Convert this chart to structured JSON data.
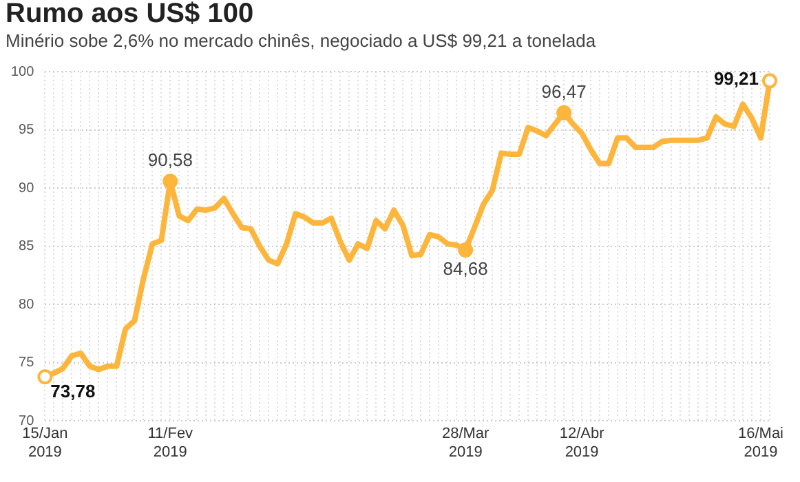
{
  "chart_data": {
    "type": "line",
    "title": "Rumo aos US$ 100",
    "subtitle": "Minério sobe 2,6% no mercado chinês, negociado a US$ 99,21 a tonelada",
    "categories": [
      "15/Jan 2019",
      null,
      null,
      null,
      null,
      null,
      null,
      null,
      null,
      null,
      null,
      null,
      null,
      null,
      "11/Fev 2019",
      null,
      null,
      null,
      null,
      null,
      null,
      null,
      null,
      null,
      null,
      null,
      null,
      null,
      null,
      null,
      null,
      null,
      null,
      null,
      null,
      null,
      null,
      null,
      null,
      null,
      null,
      null,
      null,
      null,
      null,
      null,
      null,
      "28/Mar 2019",
      null,
      null,
      null,
      null,
      null,
      null,
      null,
      null,
      null,
      null,
      null,
      null,
      "12/Abr 2019",
      null,
      null,
      null,
      null,
      null,
      null,
      null,
      null,
      null,
      null,
      null,
      null,
      null,
      null,
      null,
      null,
      null,
      null,
      null,
      "16/Mai 2019",
      null
    ],
    "series": [
      {
        "color": "#fdb53c",
        "values": [
          73.78,
          74.1,
          74.5,
          75.6,
          75.8,
          74.7,
          74.4,
          74.7,
          74.7,
          77.9,
          78.6,
          82.2,
          85.2,
          85.5,
          90.58,
          87.6,
          87.2,
          88.2,
          88.1,
          88.3,
          89.1,
          87.8,
          86.6,
          86.5,
          85.0,
          83.8,
          83.5,
          85.2,
          87.8,
          87.5,
          87.0,
          87.0,
          87.4,
          85.4,
          83.8,
          85.2,
          84.8,
          87.2,
          86.5,
          88.1,
          86.8,
          84.2,
          84.3,
          86.0,
          85.8,
          85.2,
          85.1,
          84.68,
          86.6,
          88.6,
          89.8,
          93.0,
          92.9,
          92.9,
          95.2,
          94.9,
          94.5,
          95.5,
          96.47,
          95.5,
          94.7,
          93.3,
          92.1,
          92.1,
          94.3,
          94.3,
          93.5,
          93.5,
          93.5,
          94.0,
          94.1,
          94.1,
          94.1,
          94.1,
          94.3,
          96.1,
          95.5,
          95.3,
          97.2,
          96.0,
          94.3,
          99.21
        ],
        "value_labels": [
          "73,78",
          null,
          null,
          null,
          null,
          null,
          null,
          null,
          null,
          null,
          null,
          null,
          null,
          null,
          "90,58",
          null,
          null,
          null,
          null,
          null,
          null,
          null,
          null,
          null,
          null,
          null,
          null,
          null,
          null,
          null,
          null,
          null,
          null,
          null,
          null,
          null,
          null,
          null,
          null,
          null,
          null,
          null,
          null,
          null,
          null,
          null,
          null,
          "84,68",
          null,
          null,
          null,
          null,
          null,
          null,
          null,
          null,
          null,
          null,
          "96,47",
          null,
          null,
          null,
          null,
          null,
          null,
          null,
          null,
          null,
          null,
          null,
          null,
          null,
          null,
          null,
          null,
          null,
          null,
          null,
          null,
          null,
          null,
          "99,21"
        ]
      }
    ],
    "ylim": [
      70,
      100
    ],
    "yticks": [
      70,
      75,
      80,
      85,
      90,
      95,
      100
    ],
    "grid": true,
    "legend": false
  }
}
